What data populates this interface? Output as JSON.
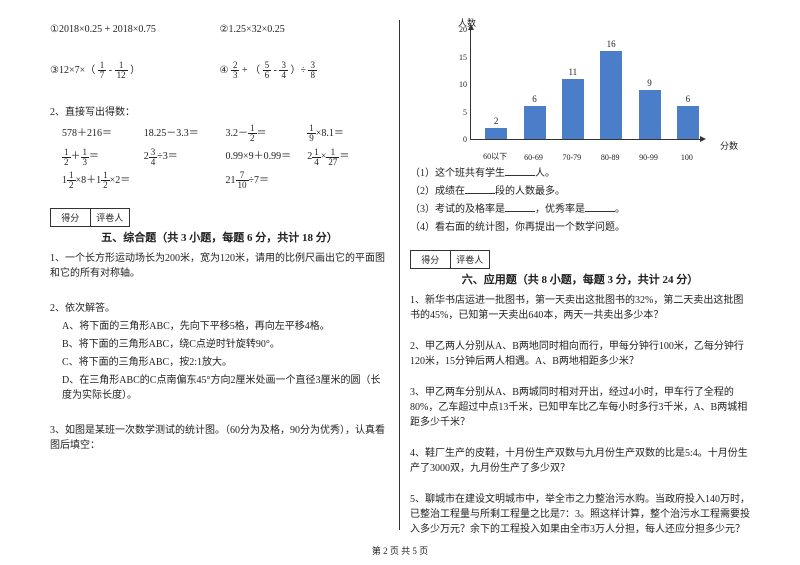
{
  "left": {
    "q1": "①2018×0.25 + 2018×0.75",
    "q2": "②1.25×32×0.25",
    "q3_pre": "③12×7×（",
    "q3_f1n": "1",
    "q3_f1d": "7",
    "q3_mid": " - ",
    "q3_f2n": "1",
    "q3_f2d": "12",
    "q3_post": "）",
    "q4_pre": "④",
    "q4_f1n": "2",
    "q4_f1d": "3",
    "q4_mid1": " + （",
    "q4_f2n": "5",
    "q4_f2d": "6",
    "q4_mid2": " - ",
    "q4_f3n": "3",
    "q4_f3d": "4",
    "q4_mid3": "）÷",
    "q4_f4n": "3",
    "q4_f4d": "8",
    "mental_title": "2、直接写出得数：",
    "m1": "578＋216＝",
    "m2": "18.25－3.3＝",
    "m3_pre": "3.2－",
    "m3_f1n": "1",
    "m3_f1d": "2",
    "m3_post": "＝",
    "m4_f1n": "1",
    "m4_f1d": "9",
    "m4_post": "×8.1＝",
    "m5_f1n": "1",
    "m5_f1d": "2",
    "m5_mid": "＋",
    "m5_f2n": "1",
    "m5_f2d": "3",
    "m5_post": "＝",
    "m6_pre": "2",
    "m6_f1n": "3",
    "m6_f1d": "4",
    "m6_post": "÷3＝",
    "m7": "0.99×9＋0.99＝",
    "m8_pre": "2",
    "m8_f1n": "1",
    "m8_f1d": "4",
    "m8_mid": "×",
    "m8_f2n": "1",
    "m8_f2d": "27",
    "m8_post": "＝",
    "m9_pre": "1",
    "m9_f1n": "1",
    "m9_f1d": "2",
    "m9_mid": "×8＋1",
    "m9_f2n": "1",
    "m9_f2d": "2",
    "m9_post": "×2＝",
    "m10_pre": "21",
    "m10_f1n": "7",
    "m10_f1d": "10",
    "m10_post": "÷7＝",
    "score1": "得分",
    "score2": "评卷人",
    "sec5": "五、综合题（共 3 小题，每题 6 分，共计 18 分）",
    "p1": "1、一个长方形运动场长为200米，宽为120米，请用的比例尺画出它的平面图和它的所有对称轴。",
    "p2": "2、依次解答。",
    "p2a": "A、将下面的三角形ABC，先向下平移5格，再向左平移4格。",
    "p2b": "B、将下面的三角形ABC，绕C点逆时针旋转90°。",
    "p2c": "C、将下面的三角形ABC，按2:1放大。",
    "p2d": "D、在三角形ABC的C点南偏东45°方向2厘米处画一个直径3厘米的圆（长度为实际长度）。",
    "p3": "3、如图是某班一次数学测试的统计图。（60分为及格，90分为优秀），认真看图后填空："
  },
  "right": {
    "chart": {
      "y_label": "人数",
      "x_label": "分数",
      "ymax": 20,
      "yticks": [
        0,
        5,
        10,
        15,
        20
      ],
      "bars": [
        {
          "label": "60以下",
          "value": 2,
          "color": "#4a7ec8",
          "text": "2"
        },
        {
          "label": "60-69",
          "value": 6,
          "color": "#4a7ec8",
          "text": "6"
        },
        {
          "label": "70-79",
          "value": 11,
          "color": "#4a7ec8",
          "text": "11"
        },
        {
          "label": "80-89",
          "value": 16,
          "color": "#4a7ec8",
          "text": "16"
        },
        {
          "label": "90-99",
          "value": 9,
          "color": "#4a7ec8",
          "text": "9"
        },
        {
          "label": "100",
          "value": 6,
          "color": "#4a7ec8",
          "text": "6"
        }
      ]
    },
    "c1_pre": "（1）这个班共有学生",
    "c1_post": "人。",
    "c2_pre": "（2）成绩在",
    "c2_post": "段的人数最多。",
    "c3_pre": "（3）考试的及格率是",
    "c3_mid": "，优秀率是",
    "c3_post": "。",
    "c4": "（4）看右面的统计图，你再提出一个数学问题。",
    "score1": "得分",
    "score2": "评卷人",
    "sec6": "六、应用题（共 8 小题，每题 3 分，共计 24 分）",
    "a1": "1、新华书店运进一批图书，第一天卖出这批图书的32%，第二天卖出这批图书的45%，已知第一天卖出640本，两天一共卖出多少本？",
    "a2": "2、甲乙两人分别从A、B两地同时相向而行，甲每分钟行100米，乙每分钟行120米，15分钟后两人相遇。A、B两地相距多少米？",
    "a3": "3、甲乙两车分别从A、B两城同时相对开出，经过4小时，甲车行了全程的80%，乙车超过中点13千米，已知甲车比乙车每小时多行3千米，A、B两城相距多少千米？",
    "a4": "4、鞋厂生产的皮鞋，十月份生产双数与九月份生产双数的比是5:4。十月份生产了3000双，九月份生产了多少双？",
    "a5": "5、聊城市在建设文明城市中，举全市之力整治污水购。当政府投入140万时，已整治工程量与所剩工程量之比是7：3。照这样计算，整个治污水工程需要投入多少万元？余下的工程投入如果由全市3万人分担，每人还应分担多少元？"
  },
  "footer": "第 2 页 共 5 页"
}
